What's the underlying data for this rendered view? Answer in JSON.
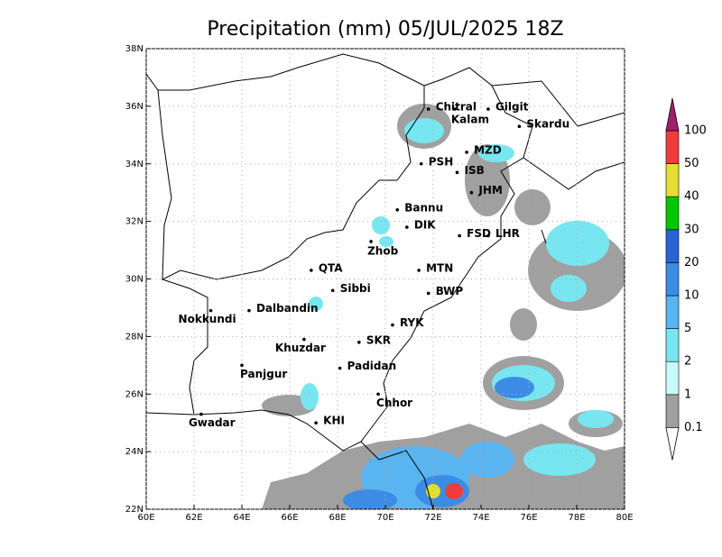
{
  "title": "Precipitation (mm) 05/JUL/2025 18Z",
  "xticks": [
    {
      "value": 60,
      "label": "60E"
    },
    {
      "value": 62,
      "label": "62E"
    },
    {
      "value": 64,
      "label": "64E"
    },
    {
      "value": 66,
      "label": "66E"
    },
    {
      "value": 68,
      "label": "68E"
    },
    {
      "value": 70,
      "label": "70E"
    },
    {
      "value": 72,
      "label": "72E"
    },
    {
      "value": 74,
      "label": "74E"
    },
    {
      "value": 76,
      "label": "76E"
    },
    {
      "value": 78,
      "label": "78E"
    },
    {
      "value": 80,
      "label": "80E"
    }
  ],
  "yticks": [
    {
      "value": 22,
      "label": "22N"
    },
    {
      "value": 24,
      "label": "24N"
    },
    {
      "value": 26,
      "label": "26N"
    },
    {
      "value": 28,
      "label": "28N"
    },
    {
      "value": 30,
      "label": "30N"
    },
    {
      "value": 32,
      "label": "32N"
    },
    {
      "value": 34,
      "label": "34N"
    },
    {
      "value": 36,
      "label": "36N"
    },
    {
      "value": 38,
      "label": "38N"
    }
  ],
  "xlim": [
    60,
    80
  ],
  "ylim": [
    22,
    38
  ],
  "cities": [
    {
      "name": "Chitral",
      "lon": 71.8,
      "lat": 35.9
    },
    {
      "name": "Kalam",
      "lon": 72.9,
      "lat": 35.9
    },
    {
      "name": "Gilgit",
      "lon": 74.3,
      "lat": 35.9
    },
    {
      "name": "Skardu",
      "lon": 75.6,
      "lat": 35.3
    },
    {
      "name": "MZD",
      "lon": 73.4,
      "lat": 34.4
    },
    {
      "name": "PSH",
      "lon": 71.5,
      "lat": 34.0
    },
    {
      "name": "ISB",
      "lon": 73.0,
      "lat": 33.7
    },
    {
      "name": "JHM",
      "lon": 73.6,
      "lat": 33.0
    },
    {
      "name": "Bannu",
      "lon": 70.5,
      "lat": 32.4
    },
    {
      "name": "DIK",
      "lon": 70.9,
      "lat": 31.8
    },
    {
      "name": "FSD",
      "lon": 73.1,
      "lat": 31.5
    },
    {
      "name": "LHR",
      "lon": 74.3,
      "lat": 31.5
    },
    {
      "name": "Zhob",
      "lon": 69.4,
      "lat": 31.3
    },
    {
      "name": "QTA",
      "lon": 66.9,
      "lat": 30.3
    },
    {
      "name": "MTN",
      "lon": 71.4,
      "lat": 30.3
    },
    {
      "name": "Sibbi",
      "lon": 67.8,
      "lat": 29.6
    },
    {
      "name": "BWP",
      "lon": 71.8,
      "lat": 29.5
    },
    {
      "name": "Nokkundi",
      "lon": 62.7,
      "lat": 28.9
    },
    {
      "name": "Dalbandin",
      "lon": 64.3,
      "lat": 28.9
    },
    {
      "name": "RYK",
      "lon": 70.3,
      "lat": 28.4
    },
    {
      "name": "Khuzdar",
      "lon": 66.6,
      "lat": 27.9
    },
    {
      "name": "SKR",
      "lon": 68.9,
      "lat": 27.8
    },
    {
      "name": "Panjgur",
      "lon": 64.0,
      "lat": 27.0
    },
    {
      "name": "Padidan",
      "lon": 68.1,
      "lat": 26.9
    },
    {
      "name": "Chhor",
      "lon": 69.7,
      "lat": 26.0
    },
    {
      "name": "KHI",
      "lon": 67.1,
      "lat": 25.0
    },
    {
      "name": "Gwadar",
      "lon": 62.3,
      "lat": 25.3
    }
  ],
  "colorbar": {
    "levels": [
      0.1,
      1,
      2,
      5,
      10,
      20,
      30,
      40,
      50,
      100
    ],
    "colors": [
      "#ffffff",
      "#a0a0a0",
      "#c8fafa",
      "#78e6f0",
      "#5ab4f0",
      "#3c8ce6",
      "#2864d8",
      "#00c800",
      "#e6dc32",
      "#f03c3c",
      "#a0206e"
    ]
  }
}
